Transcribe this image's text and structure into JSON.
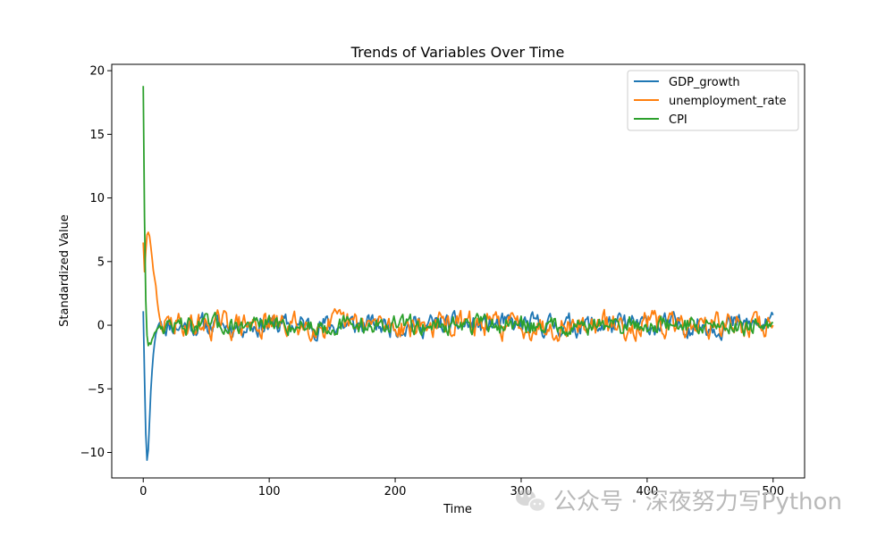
{
  "chart_data": {
    "type": "line",
    "title": "Trends of Variables Over Time",
    "xlabel": "Time",
    "ylabel": "Standardized Value",
    "xlim": [
      -25,
      525
    ],
    "ylim": [
      -12,
      20.5
    ],
    "xticks": [
      0,
      100,
      200,
      300,
      400,
      500
    ],
    "yticks": [
      -10,
      -5,
      0,
      5,
      10,
      15,
      20
    ],
    "xtick_labels": [
      "0",
      "100",
      "200",
      "300",
      "400",
      "500"
    ],
    "ytick_labels": [
      "−10",
      "−5",
      "0",
      "5",
      "10",
      "15",
      "20"
    ],
    "legend_position": "top-right",
    "n_points": 500,
    "series": [
      {
        "name": "GDP_growth",
        "color": "#1f77b4",
        "start": [
          [
            0,
            1.1
          ],
          [
            1,
            -4.0
          ],
          [
            2,
            -8.5
          ],
          [
            3,
            -10.6
          ],
          [
            4,
            -9.8
          ],
          [
            5,
            -7.5
          ],
          [
            6,
            -5.2
          ],
          [
            7,
            -3.6
          ],
          [
            8,
            -2.3
          ],
          [
            9,
            -1.4
          ],
          [
            10,
            -0.7
          ],
          [
            11,
            -0.3
          ],
          [
            12,
            0.0
          ],
          [
            13,
            0.2
          ],
          [
            14,
            0.3
          ]
        ],
        "noise_amplitude": 0.38,
        "noise_seed": 11,
        "end": [
          [
            496,
            0.3
          ],
          [
            497,
            0.5
          ],
          [
            498,
            0.7
          ],
          [
            499,
            1.0
          ],
          [
            500,
            0.8
          ]
        ]
      },
      {
        "name": "unemployment_rate",
        "color": "#ff7f0e",
        "start": [
          [
            0,
            6.5
          ],
          [
            1,
            4.2
          ],
          [
            2,
            5.8
          ],
          [
            3,
            7.1
          ],
          [
            4,
            7.3
          ],
          [
            5,
            7.0
          ],
          [
            6,
            6.2
          ],
          [
            7,
            5.3
          ],
          [
            8,
            4.3
          ],
          [
            9,
            3.7
          ],
          [
            10,
            3.1
          ],
          [
            11,
            2.0
          ],
          [
            12,
            1.2
          ],
          [
            13,
            0.6
          ],
          [
            14,
            0.1
          ],
          [
            15,
            -0.4
          ]
        ],
        "noise_amplitude": 0.45,
        "noise_seed": 29,
        "end": [
          [
            496,
            0.6
          ],
          [
            497,
            0.3
          ],
          [
            498,
            0.1
          ],
          [
            499,
            -0.2
          ],
          [
            500,
            0.0
          ]
        ]
      },
      {
        "name": "CPI",
        "color": "#2ca02c",
        "start": [
          [
            0,
            18.8
          ],
          [
            1,
            8.5
          ],
          [
            2,
            2.0
          ],
          [
            3,
            -0.8
          ],
          [
            4,
            -1.6
          ],
          [
            5,
            -1.4
          ],
          [
            6,
            -1.5
          ],
          [
            7,
            -1.1
          ],
          [
            8,
            -0.9
          ],
          [
            9,
            -0.6
          ],
          [
            10,
            -0.5
          ],
          [
            11,
            -0.3
          ],
          [
            12,
            -0.2
          ],
          [
            13,
            0.0
          ]
        ],
        "noise_amplitude": 0.33,
        "noise_seed": 47,
        "end": [
          [
            496,
            -0.2
          ],
          [
            497,
            0.1
          ],
          [
            498,
            -0.1
          ],
          [
            499,
            0.2
          ],
          [
            500,
            0.2
          ]
        ]
      }
    ]
  },
  "watermark": {
    "text": "公众号 · 深夜努力写Python",
    "icon": "wechat-icon"
  }
}
